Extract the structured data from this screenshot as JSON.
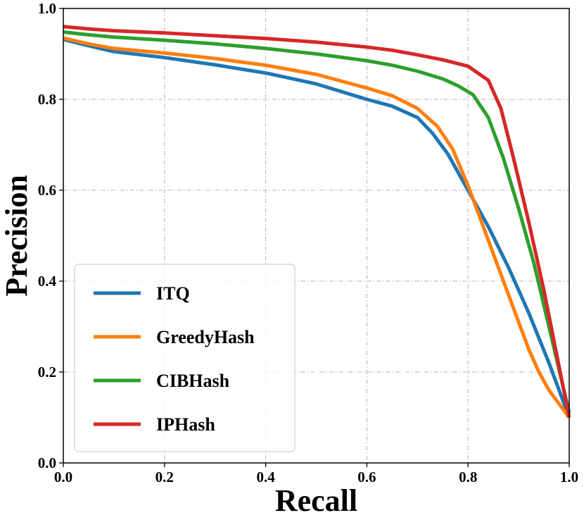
{
  "chart_data": {
    "type": "line",
    "title": "",
    "xlabel": "Recall",
    "ylabel": "Precision",
    "xlim": [
      0.0,
      1.0
    ],
    "ylim": [
      0.0,
      1.0
    ],
    "xticks": [
      "0.0",
      "0.2",
      "0.4",
      "0.6",
      "0.8",
      "1.0"
    ],
    "yticks": [
      "0.0",
      "0.2",
      "0.4",
      "0.6",
      "0.8",
      "1.0"
    ],
    "grid": true,
    "legend_position": "lower-left",
    "series": [
      {
        "name": "ITQ",
        "color": "#1f77b4",
        "x": [
          0.0,
          0.05,
          0.1,
          0.2,
          0.3,
          0.4,
          0.5,
          0.6,
          0.65,
          0.7,
          0.73,
          0.76,
          0.8,
          0.84,
          0.88,
          0.92,
          0.96,
          1.0
        ],
        "y": [
          0.932,
          0.918,
          0.905,
          0.892,
          0.876,
          0.858,
          0.834,
          0.8,
          0.785,
          0.76,
          0.725,
          0.68,
          0.6,
          0.52,
          0.43,
          0.33,
          0.22,
          0.1
        ]
      },
      {
        "name": "GreedyHash",
        "color": "#ff7f0e",
        "x": [
          0.0,
          0.05,
          0.1,
          0.2,
          0.3,
          0.4,
          0.5,
          0.6,
          0.65,
          0.7,
          0.74,
          0.77,
          0.8,
          0.83,
          0.86,
          0.89,
          0.92,
          0.94,
          0.96,
          1.0
        ],
        "y": [
          0.935,
          0.922,
          0.912,
          0.902,
          0.89,
          0.875,
          0.855,
          0.825,
          0.808,
          0.78,
          0.74,
          0.69,
          0.61,
          0.52,
          0.43,
          0.34,
          0.25,
          0.2,
          0.16,
          0.1
        ]
      },
      {
        "name": "CIBHash",
        "color": "#2ca02c",
        "x": [
          0.0,
          0.05,
          0.1,
          0.2,
          0.3,
          0.4,
          0.5,
          0.6,
          0.65,
          0.7,
          0.75,
          0.78,
          0.81,
          0.84,
          0.87,
          0.9,
          0.93,
          0.96,
          1.0
        ],
        "y": [
          0.948,
          0.942,
          0.937,
          0.93,
          0.922,
          0.912,
          0.9,
          0.885,
          0.875,
          0.862,
          0.845,
          0.83,
          0.81,
          0.76,
          0.67,
          0.56,
          0.44,
          0.3,
          0.11
        ]
      },
      {
        "name": "IPHash",
        "color": "#d62728",
        "x": [
          0.0,
          0.05,
          0.1,
          0.2,
          0.3,
          0.4,
          0.5,
          0.6,
          0.65,
          0.7,
          0.75,
          0.8,
          0.84,
          0.865,
          0.89,
          0.92,
          0.95,
          0.975,
          1.0
        ],
        "y": [
          0.96,
          0.955,
          0.951,
          0.946,
          0.94,
          0.934,
          0.926,
          0.915,
          0.908,
          0.898,
          0.887,
          0.873,
          0.842,
          0.78,
          0.67,
          0.53,
          0.38,
          0.24,
          0.1
        ]
      }
    ]
  }
}
